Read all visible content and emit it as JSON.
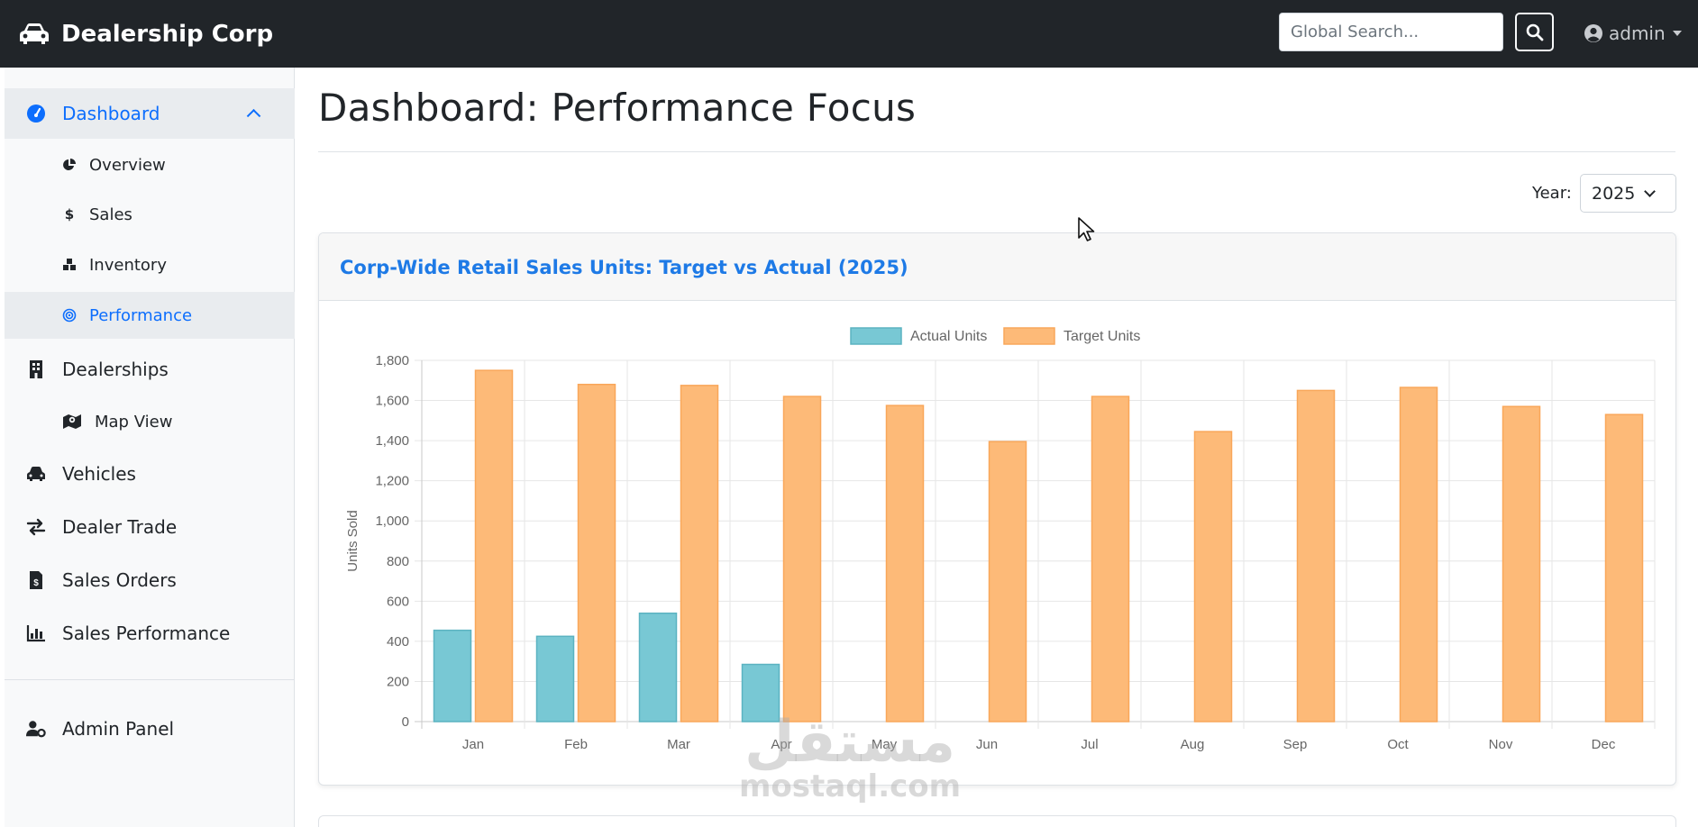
{
  "app": {
    "brand": "Dealership Corp"
  },
  "header": {
    "search_placeholder": "Global Search...",
    "user": "admin"
  },
  "sidebar": {
    "items": [
      {
        "label": "Dashboard",
        "icon": "gauge-icon",
        "level": "main",
        "state": "expanded"
      },
      {
        "label": "Overview",
        "icon": "pie-chart-icon",
        "level": "sub"
      },
      {
        "label": "Sales",
        "icon": "dollar-icon",
        "level": "sub"
      },
      {
        "label": "Inventory",
        "icon": "boxes-icon",
        "level": "sub"
      },
      {
        "label": "Performance",
        "icon": "bullseye-icon",
        "level": "sub",
        "state": "active"
      },
      {
        "label": "Dealerships",
        "icon": "building-icon",
        "level": "main"
      },
      {
        "label": "Map View",
        "icon": "map-icon",
        "level": "sub"
      },
      {
        "label": "Vehicles",
        "icon": "car-icon",
        "level": "main"
      },
      {
        "label": "Dealer Trade",
        "icon": "exchange-icon",
        "level": "main"
      },
      {
        "label": "Sales Orders",
        "icon": "invoice-icon",
        "level": "main"
      },
      {
        "label": "Sales Performance",
        "icon": "bar-chart-icon",
        "level": "main"
      },
      {
        "label": "Admin Panel",
        "icon": "user-cog-icon",
        "level": "main"
      }
    ]
  },
  "main": {
    "page_title": "Dashboard: Performance Focus",
    "year_label": "Year:",
    "year_value": "2025"
  },
  "card": {
    "title": "Corp-Wide Retail Sales Units: Target vs Actual (2025)"
  },
  "colors": {
    "navbar": "#212529",
    "accent": "#0d6efd",
    "actual": "#78c8d4",
    "target": "#fdba78"
  },
  "watermark": {
    "arabic": "مستقل",
    "latin": "mostaql.com"
  },
  "chart_data": {
    "type": "bar",
    "categories": [
      "Jan",
      "Feb",
      "Mar",
      "Apr",
      "May",
      "Jun",
      "Jul",
      "Aug",
      "Sep",
      "Oct",
      "Nov",
      "Dec"
    ],
    "series": [
      {
        "name": "Actual Units",
        "values": [
          455,
          425,
          540,
          285,
          null,
          null,
          null,
          null,
          null,
          null,
          null,
          null
        ]
      },
      {
        "name": "Target Units",
        "values": [
          1750,
          1680,
          1675,
          1620,
          1575,
          1395,
          1620,
          1445,
          1650,
          1665,
          1570,
          1530
        ]
      }
    ],
    "ylabel": "Units Sold",
    "ylim": [
      0,
      1800
    ],
    "yticks": [
      "0",
      "200",
      "400",
      "600",
      "800",
      "1,000",
      "1,200",
      "1,400",
      "1,600",
      "1,800"
    ],
    "grid": true,
    "legend": "top-center"
  }
}
